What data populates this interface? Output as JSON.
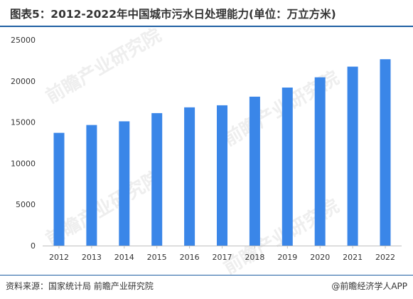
{
  "header": {
    "title": "图表5：2012-2022年中国城市污水日处理能力(单位：万立方米)"
  },
  "footer": {
    "source": "资料来源：国家统计局 前瞻产业研究院",
    "brand": "@前瞻经济学人APP"
  },
  "watermark": {
    "text": "前瞻产业研究院"
  },
  "chart_data": {
    "type": "bar",
    "categories": [
      "2012",
      "2013",
      "2014",
      "2015",
      "2016",
      "2017",
      "2018",
      "2019",
      "2020",
      "2021",
      "2022"
    ],
    "values": [
      13700,
      14650,
      15100,
      16100,
      16800,
      17050,
      18100,
      19200,
      20450,
      21750,
      22650
    ],
    "title": "图表5：2012-2022年中国城市污水日处理能力(单位：万立方米)",
    "xlabel": "",
    "ylabel": "",
    "ylim": [
      0,
      25000
    ],
    "yticks": [
      0,
      5000,
      10000,
      15000,
      20000,
      25000
    ],
    "grid": false,
    "legend": "none",
    "colors": {
      "bar": "#3a86e8",
      "axis": "#bfbfbf",
      "text": "#333333",
      "accent": "#1f5fa3"
    }
  }
}
